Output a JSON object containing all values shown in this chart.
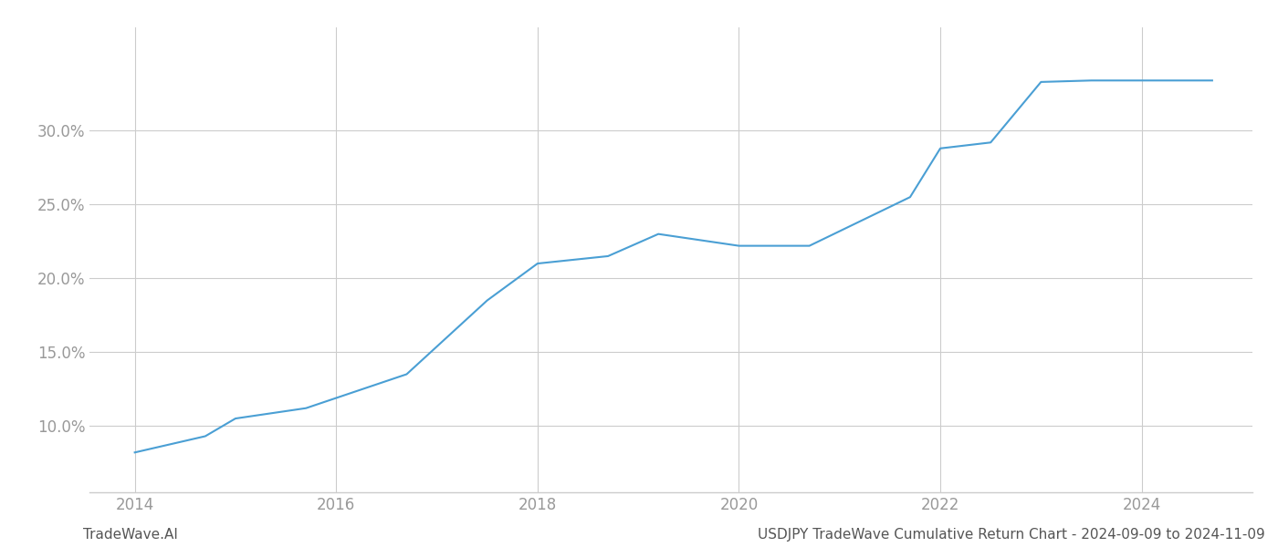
{
  "x_years": [
    2014.0,
    2014.7,
    2015.0,
    2015.7,
    2016.7,
    2017.5,
    2018.0,
    2018.7,
    2019.2,
    2019.7,
    2020.0,
    2020.7,
    2021.7,
    2022.0,
    2022.5,
    2023.0,
    2023.5,
    2024.0,
    2024.7
  ],
  "y_values": [
    8.2,
    9.3,
    10.5,
    11.2,
    13.5,
    18.5,
    21.0,
    21.5,
    23.0,
    22.5,
    22.2,
    22.2,
    25.5,
    28.8,
    29.2,
    33.3,
    33.4,
    33.4,
    33.4
  ],
  "line_color": "#4a9fd4",
  "line_width": 1.5,
  "footer_left": "TradeWave.AI",
  "footer_right": "USDJPY TradeWave Cumulative Return Chart - 2024-09-09 to 2024-11-09",
  "footer_fontsize": 11,
  "ytick_labels": [
    "10.0%",
    "15.0%",
    "20.0%",
    "25.0%",
    "30.0%"
  ],
  "ytick_values": [
    10.0,
    15.0,
    20.0,
    25.0,
    30.0
  ],
  "xtick_values": [
    2014,
    2016,
    2018,
    2020,
    2022,
    2024
  ],
  "ylim": [
    5.5,
    37.0
  ],
  "xlim": [
    2013.55,
    2025.1
  ],
  "grid_color": "#cccccc",
  "background_color": "#ffffff",
  "tick_color": "#999999",
  "footer_color": "#555555"
}
